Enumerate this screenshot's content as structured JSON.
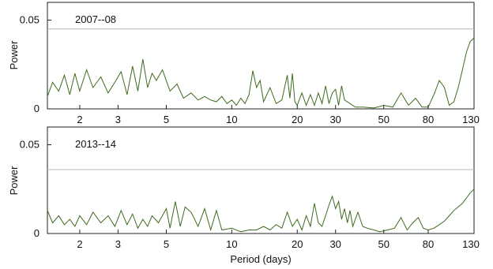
{
  "chart_data": [
    {
      "type": "line",
      "title": "2007--08",
      "xlabel": "",
      "ylabel": "Power",
      "xscale": "log",
      "xlim": [
        1.42,
        130
      ],
      "ylim": [
        0,
        0.06
      ],
      "x_ticks": [
        2,
        3,
        5,
        10,
        20,
        30,
        50,
        80,
        130
      ],
      "x_tick_labels": [
        "2",
        "3",
        "5",
        "10",
        "20",
        "30",
        "50",
        "80",
        "130"
      ],
      "y_ticks": [
        0,
        0.05
      ],
      "y_tick_labels": [
        "0",
        "0.05"
      ],
      "threshold": 0.045,
      "threshold_color": "#b8b8b8",
      "line_color": "#3d6b1f",
      "series": [
        {
          "x": [
            1.42,
            1.5,
            1.6,
            1.7,
            1.8,
            1.9,
            2.0,
            2.15,
            2.3,
            2.5,
            2.7,
            2.9,
            3.1,
            3.3,
            3.5,
            3.7,
            3.9,
            4.1,
            4.3,
            4.5,
            4.8,
            5.2,
            5.6,
            6.0,
            6.5,
            7.0,
            7.5,
            8.0,
            8.5,
            9.0,
            9.5,
            10.0,
            10.5,
            11.0,
            11.5,
            12.0,
            12.5,
            13.0,
            13.5,
            14.0,
            15.0,
            16.0,
            17.0,
            18.0,
            18.5,
            19.0,
            19.5,
            20.0,
            21.0,
            22.0,
            23.0,
            24.0,
            25.0,
            26.0,
            27.0,
            28.0,
            29.0,
            30.0,
            31.0,
            32.0,
            33.0,
            35.0,
            37.0,
            40.0,
            45.0,
            50.0,
            55.0,
            60.0,
            65.0,
            70.0,
            75.0,
            80.0,
            85.0,
            90.0,
            95.0,
            100.0,
            105.0,
            110.0,
            115.0,
            120.0,
            125.0,
            130.0
          ],
          "y": [
            0.007,
            0.015,
            0.01,
            0.019,
            0.008,
            0.02,
            0.01,
            0.022,
            0.012,
            0.018,
            0.009,
            0.015,
            0.021,
            0.008,
            0.024,
            0.01,
            0.028,
            0.012,
            0.02,
            0.016,
            0.022,
            0.01,
            0.014,
            0.006,
            0.009,
            0.005,
            0.007,
            0.005,
            0.004,
            0.007,
            0.003,
            0.005,
            0.002,
            0.006,
            0.003,
            0.008,
            0.0215,
            0.012,
            0.016,
            0.004,
            0.012,
            0.003,
            0.005,
            0.019,
            0.006,
            0.02,
            0.004,
            0.002,
            0.009,
            0.002,
            0.008,
            0.002,
            0.009,
            0.003,
            0.013,
            0.003,
            0.009,
            0.011,
            0.002,
            0.013,
            0.005,
            0.003,
            0.001,
            0.001,
            0.0005,
            0.002,
            0.001,
            0.009,
            0.002,
            0.006,
            0.001,
            0.001,
            0.008,
            0.016,
            0.012,
            0.002,
            0.004,
            0.012,
            0.022,
            0.032,
            0.038,
            0.04
          ]
        }
      ]
    },
    {
      "type": "line",
      "title": "2013--14",
      "xlabel": "Period (days)",
      "ylabel": "Power",
      "xscale": "log",
      "xlim": [
        1.42,
        130
      ],
      "ylim": [
        0,
        0.06
      ],
      "x_ticks": [
        2,
        3,
        5,
        10,
        20,
        30,
        50,
        80,
        130
      ],
      "x_tick_labels": [
        "2",
        "3",
        "5",
        "10",
        "20",
        "30",
        "50",
        "80",
        "130"
      ],
      "y_ticks": [
        0,
        0.05
      ],
      "y_tick_labels": [
        "0",
        "0.05"
      ],
      "threshold": 0.036,
      "threshold_color": "#b8b8b8",
      "line_color": "#3d6b1f",
      "series": [
        {
          "x": [
            1.42,
            1.5,
            1.6,
            1.7,
            1.8,
            1.9,
            2.0,
            2.15,
            2.3,
            2.5,
            2.7,
            2.9,
            3.1,
            3.3,
            3.5,
            3.7,
            3.9,
            4.1,
            4.3,
            4.6,
            5.0,
            5.2,
            5.5,
            5.8,
            6.1,
            6.5,
            7.0,
            7.5,
            8.0,
            8.5,
            9.0,
            10.0,
            11.0,
            12.0,
            13.0,
            14.0,
            15.0,
            16.0,
            17.0,
            18.0,
            19.0,
            20.0,
            21.0,
            22.0,
            23.0,
            24.0,
            25.0,
            26.0,
            27.0,
            28.0,
            29.0,
            30.0,
            31.0,
            32.0,
            33.0,
            34.0,
            35.0,
            36.0,
            38.0,
            40.0,
            42.0,
            45.0,
            48.0,
            52.0,
            56.0,
            60.0,
            64.0,
            68.0,
            72.0,
            76.0,
            80.0,
            85.0,
            90.0,
            95.0,
            100.0,
            105.0,
            110.0,
            115.0,
            120.0,
            125.0,
            130.0
          ],
          "y": [
            0.013,
            0.006,
            0.01,
            0.005,
            0.008,
            0.004,
            0.01,
            0.005,
            0.012,
            0.006,
            0.01,
            0.004,
            0.013,
            0.005,
            0.011,
            0.003,
            0.008,
            0.004,
            0.01,
            0.006,
            0.014,
            0.003,
            0.018,
            0.004,
            0.015,
            0.012,
            0.004,
            0.014,
            0.002,
            0.013,
            0.002,
            0.003,
            0.001,
            0.002,
            0.002,
            0.004,
            0.002,
            0.005,
            0.003,
            0.012,
            0.004,
            0.008,
            0.002,
            0.01,
            0.004,
            0.017,
            0.006,
            0.004,
            0.01,
            0.016,
            0.021,
            0.014,
            0.018,
            0.008,
            0.014,
            0.006,
            0.013,
            0.004,
            0.012,
            0.004,
            0.003,
            0.002,
            0.001,
            0.002,
            0.003,
            0.009,
            0.002,
            0.006,
            0.009,
            0.003,
            0.002,
            0.003,
            0.005,
            0.007,
            0.01,
            0.013,
            0.015,
            0.017,
            0.02,
            0.023,
            0.025
          ]
        }
      ]
    }
  ]
}
